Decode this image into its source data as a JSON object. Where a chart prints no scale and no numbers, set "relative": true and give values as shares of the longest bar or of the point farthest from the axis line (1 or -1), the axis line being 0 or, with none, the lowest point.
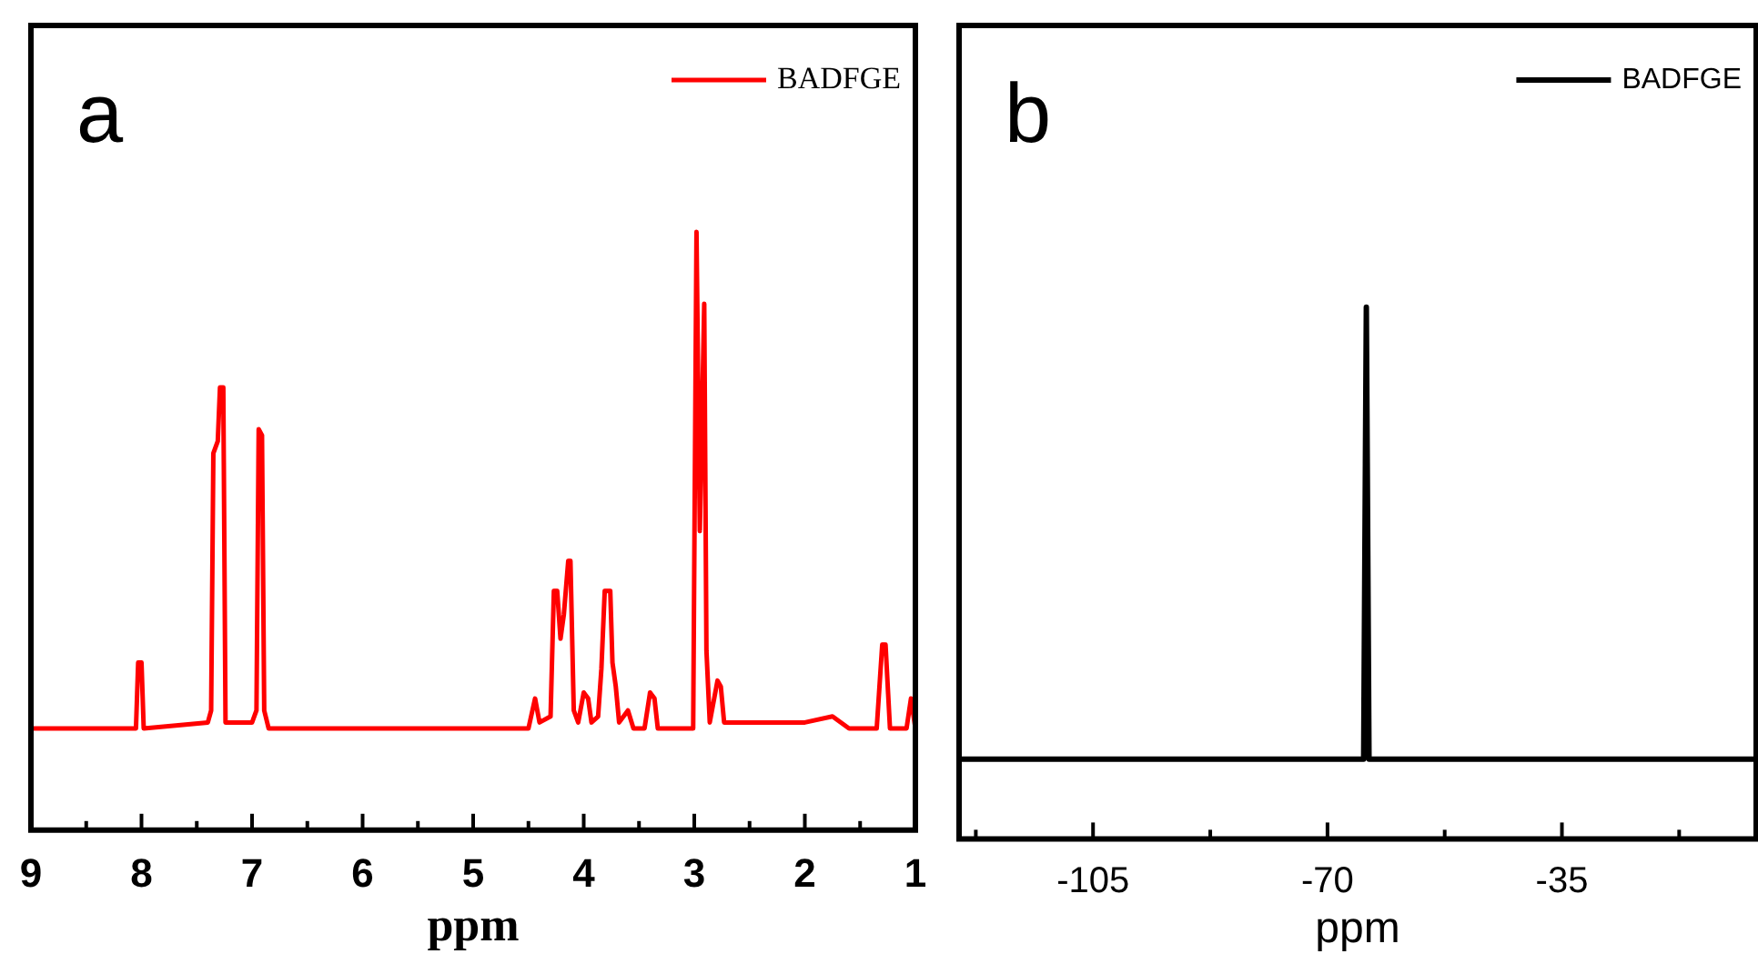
{
  "chart_data": [
    {
      "type": "line",
      "title": "a",
      "xlabel": "ppm",
      "relative": true,
      "legend": "top right",
      "marker": "none",
      "line_style": "solid",
      "xlim": [
        9,
        1
      ],
      "xticks": [
        9,
        {
          "value": 8.5,
          "label": null
        },
        8,
        {
          "value": 7.5,
          "label": null
        },
        7,
        {
          "value": 6.5,
          "label": null
        },
        6,
        {
          "value": 5.5,
          "label": null
        },
        5,
        {
          "value": 4.5,
          "label": null
        },
        4,
        {
          "value": 3.5,
          "label": null
        },
        3,
        {
          "value": 2.5,
          "label": null
        },
        2,
        {
          "value": 1.5,
          "label": null
        },
        1
      ],
      "series": [
        {
          "name": "BADFGE",
          "color": "#ff0000",
          "x": [
            9.0,
            8.05,
            8.03,
            8.0,
            7.98,
            7.4,
            7.37,
            7.35,
            7.31,
            7.29,
            7.26,
            7.24,
            7.0,
            6.96,
            6.94,
            6.91,
            6.89,
            6.85,
            5.4,
            4.5,
            4.44,
            4.4,
            4.3,
            4.27,
            4.24,
            4.21,
            4.18,
            4.14,
            4.12,
            4.09,
            4.05,
            4.0,
            3.96,
            3.93,
            3.87,
            3.84,
            3.81,
            3.76,
            3.74,
            3.71,
            3.68,
            3.6,
            3.55,
            3.45,
            3.4,
            3.36,
            3.33,
            3.01,
            2.98,
            2.95,
            2.91,
            2.89,
            2.86,
            2.79,
            2.76,
            2.73,
            2.0,
            1.75,
            1.6,
            1.35,
            1.3,
            1.27,
            1.23,
            1.08,
            1.04,
            1.0
          ],
          "values": [
            0.17,
            0.17,
            0.28,
            0.28,
            0.17,
            0.18,
            0.2,
            0.63,
            0.65,
            0.74,
            0.74,
            0.18,
            0.18,
            0.2,
            0.67,
            0.66,
            0.2,
            0.17,
            0.17,
            0.17,
            0.22,
            0.18,
            0.19,
            0.4,
            0.4,
            0.32,
            0.36,
            0.45,
            0.45,
            0.2,
            0.18,
            0.23,
            0.22,
            0.18,
            0.19,
            0.27,
            0.4,
            0.4,
            0.28,
            0.24,
            0.18,
            0.2,
            0.17,
            0.17,
            0.23,
            0.22,
            0.17,
            0.17,
            1.0,
            0.5,
            0.88,
            0.3,
            0.18,
            0.25,
            0.24,
            0.18,
            0.18,
            0.19,
            0.17,
            0.17,
            0.31,
            0.31,
            0.17,
            0.17,
            0.22,
            0.17
          ]
        }
      ]
    },
    {
      "type": "line",
      "title": "b",
      "xlabel": "ppm",
      "relative": true,
      "legend": "top right",
      "marker": "none",
      "line_style": "solid",
      "xlim": [
        -125,
        -6
      ],
      "xticks": [
        {
          "value": -122.5,
          "label": null
        },
        -105,
        {
          "value": -87.5,
          "label": null
        },
        -70,
        {
          "value": -52.5,
          "label": null
        },
        -35,
        {
          "value": -17.5,
          "label": null
        }
      ],
      "series": [
        {
          "name": "BADFGE",
          "color": "#000000",
          "x": [
            -125,
            -64.6,
            -64.2,
            -63.8,
            -6
          ],
          "values": [
            0.15,
            0.15,
            1.0,
            0.15,
            0.15
          ]
        }
      ]
    }
  ]
}
